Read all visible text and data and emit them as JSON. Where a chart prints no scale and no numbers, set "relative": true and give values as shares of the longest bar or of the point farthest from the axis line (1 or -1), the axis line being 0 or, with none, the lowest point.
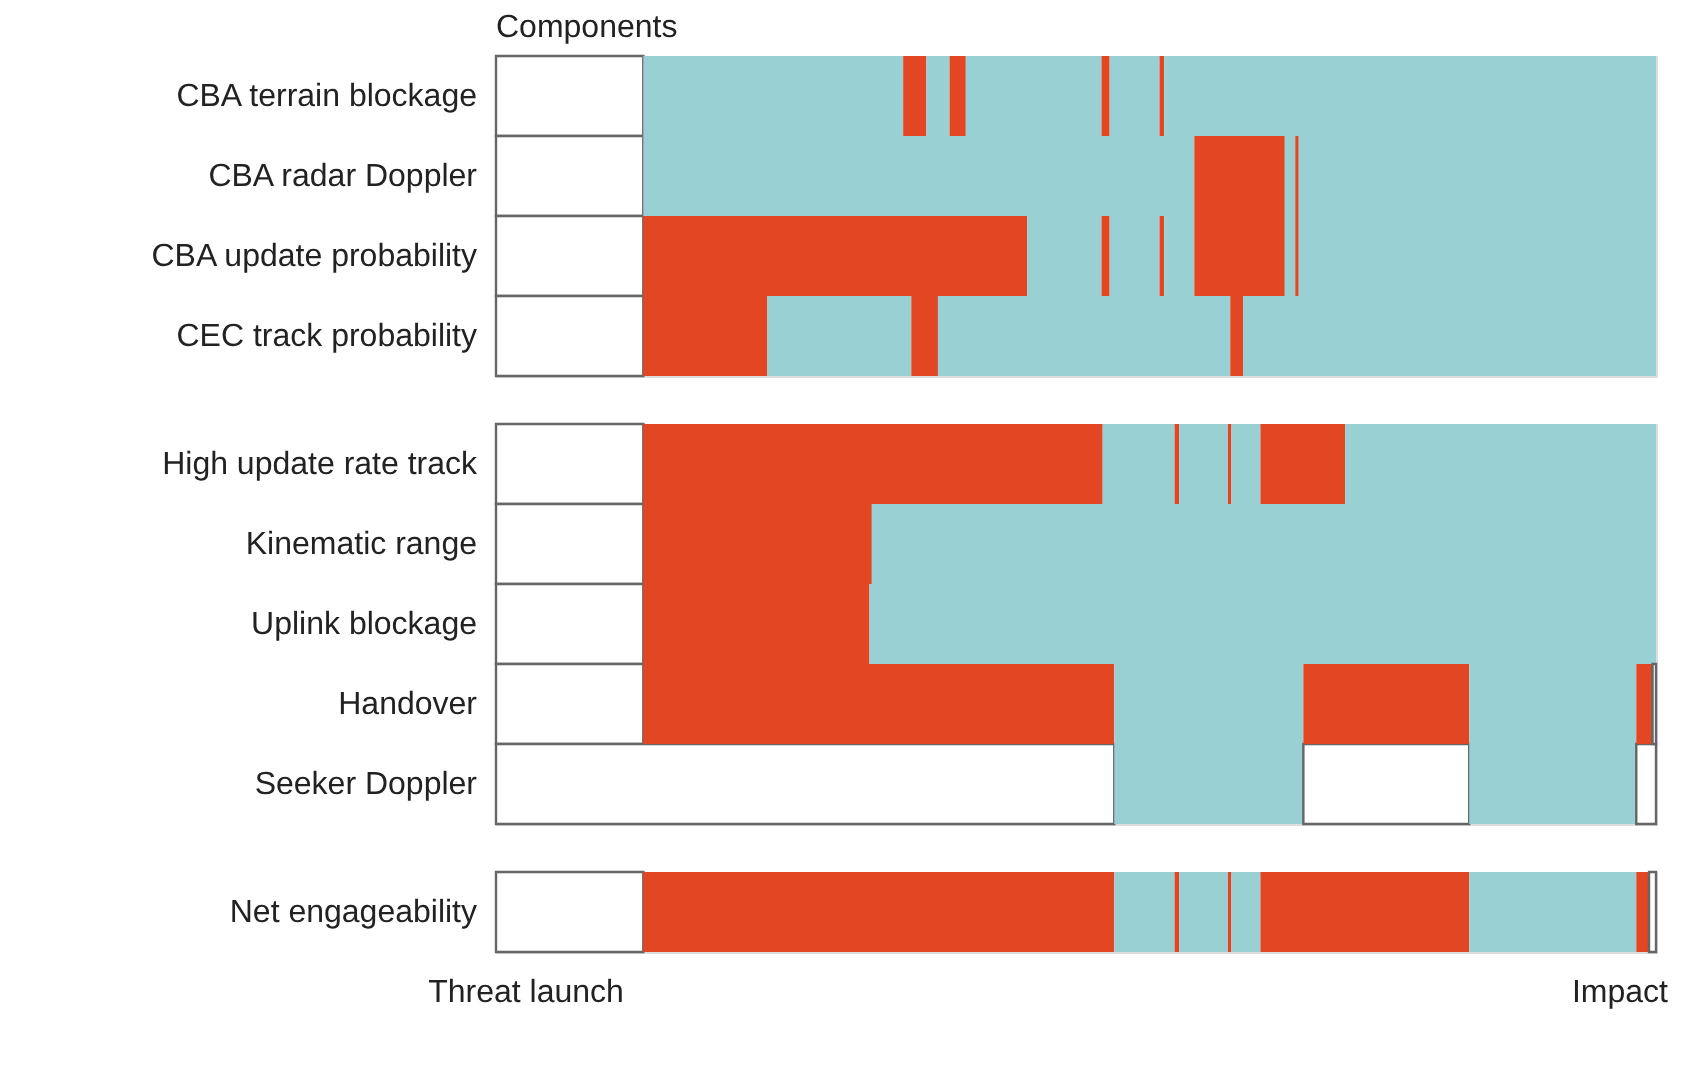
{
  "chart_data": [
    {
      "type": "bar",
      "orientation": "horizontal",
      "stacked": true,
      "relative": true,
      "title": "Components",
      "categories": [
        "CBA terrain blockage",
        "CBA radar Doppler",
        "CBA update probability",
        "CEC track probability"
      ],
      "series": [
        {
          "values": [
            0.127,
            0.127,
            0.127,
            0.127
          ],
          "colors": [
            "#ffffff",
            "#ffffff",
            "#ffffff",
            "#ffffff"
          ]
        },
        {
          "values": [
            0.224,
            0.475,
            0.331,
            0.107
          ],
          "colors": [
            "#99d0d3",
            "#99d0d3",
            "#e34623",
            "#e34623"
          ]
        },
        {
          "values": [
            0.02,
            0.078,
            0.064,
            0.124
          ],
          "colors": [
            "#e34623",
            "#e34623",
            "#99d0d3",
            "#99d0d3"
          ]
        },
        {
          "values": [
            0.02,
            0.009,
            0.007,
            0.023
          ],
          "colors": [
            "#99d0d3",
            "#99d0d3",
            "#e34623",
            "#e34623"
          ]
        },
        {
          "values": [
            0.014,
            0.003,
            0.043,
            0.252
          ],
          "colors": [
            "#e34623",
            "#e34623",
            "#99d0d3",
            "#99d0d3"
          ]
        },
        {
          "values": [
            0.117,
            0.308,
            0.004,
            0.011
          ],
          "colors": [
            "#99d0d3",
            "#99d0d3",
            "#e34623",
            "#e34623"
          ]
        },
        {
          "values": [
            0.007,
            null,
            0.026,
            0.356
          ],
          "colors": [
            "#e34623",
            null,
            "#99d0d3",
            "#99d0d3"
          ]
        },
        {
          "values": [
            0.043,
            null,
            0.078,
            null
          ],
          "colors": [
            "#99d0d3",
            null,
            "#e34623",
            null
          ]
        },
        {
          "values": [
            0.004,
            null,
            0.009,
            null
          ],
          "colors": [
            "#e34623",
            null,
            "#99d0d3",
            null
          ]
        },
        {
          "values": [
            0.424,
            null,
            0.003,
            null
          ],
          "colors": [
            "#99d0d3",
            null,
            "#e34623",
            null
          ]
        },
        {
          "values": [
            null,
            null,
            0.308,
            null
          ],
          "colors": [
            null,
            null,
            "#99d0d3",
            null
          ]
        }
      ]
    },
    {
      "type": "bar",
      "orientation": "horizontal",
      "stacked": true,
      "relative": true,
      "categories": [
        "High update rate track",
        "Kinematic range",
        "Uplink blockage",
        "Handover",
        "Seeker Doppler"
      ],
      "series": [
        {
          "values": [
            0.127,
            0.127,
            0.127,
            0.127,
            0.533
          ],
          "colors": [
            "#ffffff",
            "#ffffff",
            "#ffffff",
            "#ffffff",
            "#ffffff"
          ]
        },
        {
          "values": [
            0.396,
            0.197,
            0.195,
            0.406,
            0.163
          ],
          "colors": [
            "#e34623",
            "#e34623",
            "#e34623",
            "#e34623",
            "#99d0d3"
          ]
        },
        {
          "values": [
            0.062,
            0.676,
            0.678,
            0.163,
            0.143
          ],
          "colors": [
            "#99d0d3",
            "#99d0d3",
            "#99d0d3",
            "#99d0d3",
            "#ffffff"
          ]
        },
        {
          "values": [
            0.004,
            null,
            null,
            0.143,
            0.144
          ],
          "colors": [
            "#e34623",
            null,
            null,
            "#e34623",
            "#99d0d3"
          ]
        },
        {
          "values": [
            0.042,
            null,
            null,
            0.144,
            0.017
          ],
          "colors": [
            "#99d0d3",
            null,
            null,
            "#99d0d3",
            "#ffffff"
          ]
        },
        {
          "values": [
            0.003,
            null,
            null,
            0.014,
            null
          ],
          "colors": [
            "#e34623",
            null,
            null,
            "#e34623",
            null
          ]
        },
        {
          "values": [
            0.025,
            null,
            null,
            0.003,
            null
          ],
          "colors": [
            "#99d0d3",
            null,
            null,
            "#ffffff",
            null
          ]
        },
        {
          "values": [
            0.073,
            null,
            null,
            null,
            null
          ],
          "colors": [
            "#e34623",
            null,
            null,
            null,
            null
          ]
        },
        {
          "values": [
            0.268,
            null,
            null,
            null,
            null
          ],
          "colors": [
            "#99d0d3",
            null,
            null,
            null,
            null
          ]
        }
      ]
    },
    {
      "type": "bar",
      "orientation": "horizontal",
      "stacked": true,
      "relative": true,
      "categories": [
        "Net engageability"
      ],
      "series": [
        {
          "values": [
            0.127
          ],
          "colors": [
            "#ffffff"
          ]
        },
        {
          "values": [
            0.406
          ],
          "colors": [
            "#e34623"
          ]
        },
        {
          "values": [
            0.052
          ],
          "colors": [
            "#99d0d3"
          ]
        },
        {
          "values": [
            0.004
          ],
          "colors": [
            "#e34623"
          ]
        },
        {
          "values": [
            0.042
          ],
          "colors": [
            "#99d0d3"
          ]
        },
        {
          "values": [
            0.003
          ],
          "colors": [
            "#e34623"
          ]
        },
        {
          "values": [
            0.025
          ],
          "colors": [
            "#99d0d3"
          ]
        },
        {
          "values": [
            0.18
          ],
          "colors": [
            "#e34623"
          ]
        },
        {
          "values": [
            0.144
          ],
          "colors": [
            "#99d0d3"
          ]
        },
        {
          "values": [
            0.011
          ],
          "colors": [
            "#e34623"
          ]
        },
        {
          "values": [
            0.006
          ],
          "colors": [
            "#ffffff"
          ]
        }
      ],
      "annotations": [
        "Threat launch",
        "Impact"
      ]
    }
  ]
}
